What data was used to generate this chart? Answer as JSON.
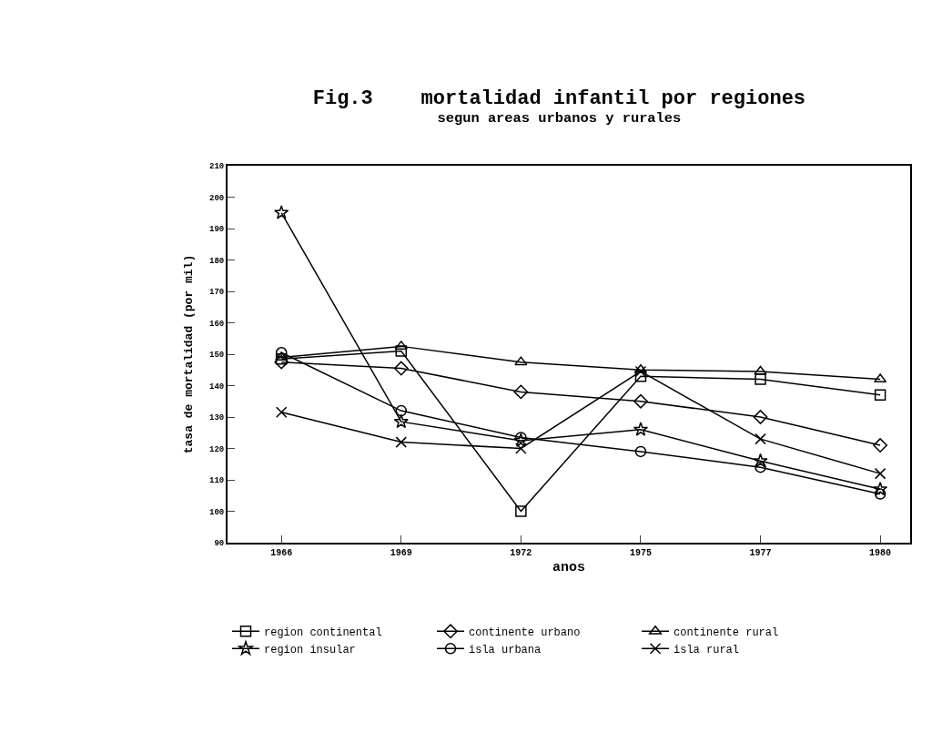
{
  "chart_data": {
    "type": "line",
    "title": "Fig.3    mortalidad infantil por regiones",
    "subtitle": "segun areas urbanos y rurales",
    "xlabel": "anos",
    "ylabel": "tasa de mortalidad (por mil)",
    "categories": [
      "1966",
      "1969",
      "1972",
      "1975",
      "1977",
      "1980"
    ],
    "ylim": [
      90,
      210
    ],
    "yticks": [
      90,
      100,
      110,
      120,
      130,
      140,
      150,
      160,
      170,
      180,
      190,
      200,
      210
    ],
    "grid": false,
    "legend": "bottom",
    "line_style": "solid",
    "series": [
      {
        "name": "region continental",
        "color": "#000000",
        "marker": "square",
        "values": [
          148.5,
          151,
          100,
          143,
          142,
          137
        ]
      },
      {
        "name": "continente urbano",
        "color": "#000000",
        "marker": "diamond",
        "values": [
          147.5,
          145.5,
          138,
          135,
          130,
          121
        ]
      },
      {
        "name": "continente rural",
        "color": "#000000",
        "marker": "triangle",
        "values": [
          149,
          152.5,
          147.5,
          145,
          144.5,
          142
        ]
      },
      {
        "name": "region insular",
        "color": "#000000",
        "marker": "star",
        "values": [
          195,
          128.5,
          122.5,
          126,
          116,
          107
        ]
      },
      {
        "name": "isla urbana",
        "color": "#000000",
        "marker": "circle",
        "values": [
          150.5,
          132,
          123.5,
          119,
          114,
          105.5
        ]
      },
      {
        "name": "isla rural",
        "color": "#000000",
        "marker": "cross",
        "values": [
          131.5,
          122,
          120,
          144.5,
          123,
          112
        ]
      }
    ]
  }
}
